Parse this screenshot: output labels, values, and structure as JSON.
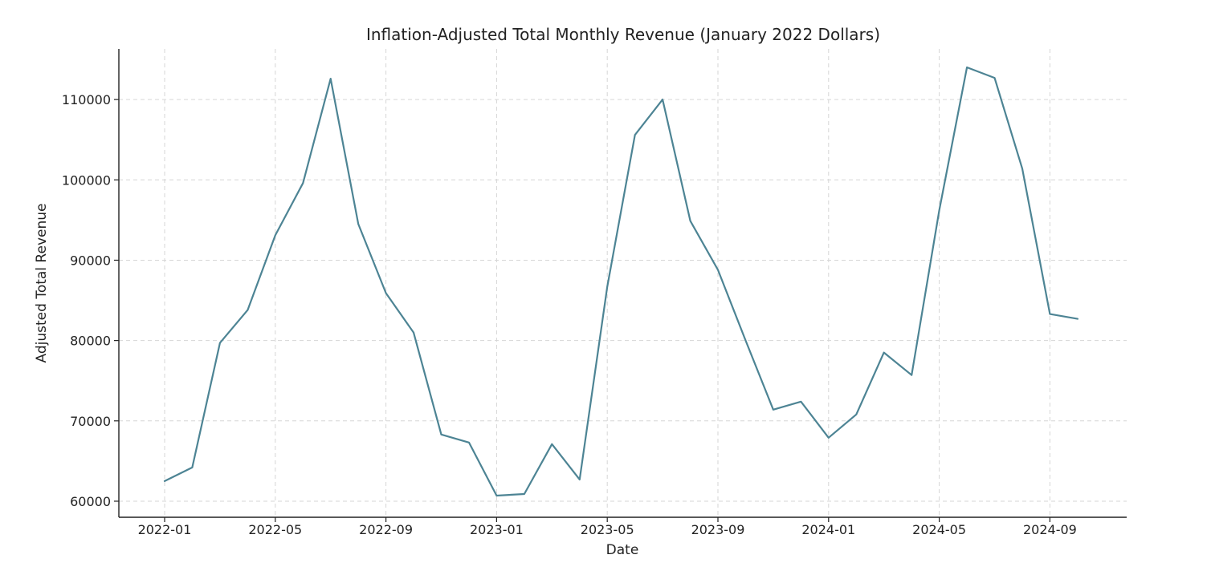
{
  "chart_data": {
    "type": "line",
    "title": "Inflation-Adjusted Total Monthly Revenue (January 2022 Dollars)",
    "xlabel": "Date",
    "ylabel": "Adjusted Total Revenue",
    "x": [
      "2022-01",
      "2022-02",
      "2022-03",
      "2022-04",
      "2022-05",
      "2022-06",
      "2022-07",
      "2022-08",
      "2022-09",
      "2022-10",
      "2022-11",
      "2022-12",
      "2023-01",
      "2023-02",
      "2023-03",
      "2023-04",
      "2023-05",
      "2023-06",
      "2023-07",
      "2023-08",
      "2023-09",
      "2023-10",
      "2023-11",
      "2023-12",
      "2024-01",
      "2024-02",
      "2024-03",
      "2024-04",
      "2024-05",
      "2024-06",
      "2024-07",
      "2024-08",
      "2024-09",
      "2024-10"
    ],
    "series": [
      {
        "name": "Adjusted Total Revenue",
        "color": "#4d8494",
        "values": [
          62500,
          64200,
          79700,
          83800,
          93100,
          99600,
          112600,
          94500,
          85900,
          81000,
          68300,
          67300,
          60700,
          60900,
          67100,
          62700,
          86700,
          105600,
          110000,
          94900,
          88800,
          80000,
          71400,
          72400,
          67900,
          70800,
          78500,
          75700,
          96200,
          114000,
          112700,
          101400,
          83300,
          82700
        ]
      }
    ],
    "xticks": [
      "2022-01",
      "2022-05",
      "2022-09",
      "2023-01",
      "2023-05",
      "2023-09",
      "2024-01",
      "2024-05",
      "2024-09"
    ],
    "yticks": [
      60000,
      70000,
      80000,
      90000,
      100000,
      110000
    ],
    "ylim": [
      58000,
      116300
    ],
    "grid": true
  }
}
